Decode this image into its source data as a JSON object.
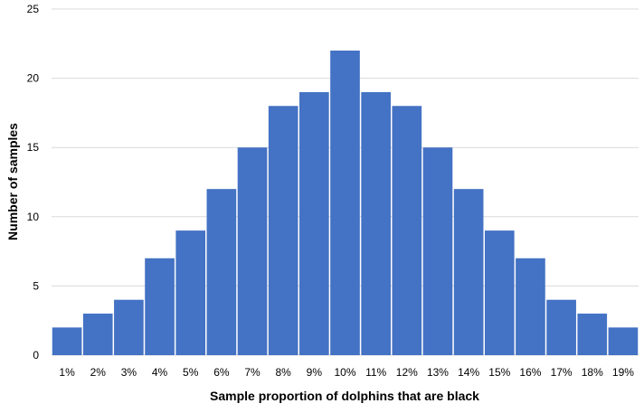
{
  "chart_data": {
    "type": "bar",
    "title": "",
    "xlabel": "Sample proportion of dolphins that are black",
    "ylabel": "Number of samples",
    "categories": [
      "1%",
      "2%",
      "3%",
      "4%",
      "5%",
      "6%",
      "7%",
      "8%",
      "9%",
      "10%",
      "11%",
      "12%",
      "13%",
      "14%",
      "15%",
      "16%",
      "17%",
      "18%",
      "19%"
    ],
    "values": [
      2,
      3,
      4,
      7,
      9,
      12,
      15,
      18,
      19,
      22,
      19,
      18,
      15,
      12,
      9,
      7,
      4,
      3,
      2
    ],
    "ylim": [
      0,
      25
    ],
    "yticks": [
      0,
      5,
      10,
      15,
      20,
      25
    ],
    "grid": true,
    "bar_color": "#4472c4",
    "grid_color": "#d9d9d9"
  }
}
